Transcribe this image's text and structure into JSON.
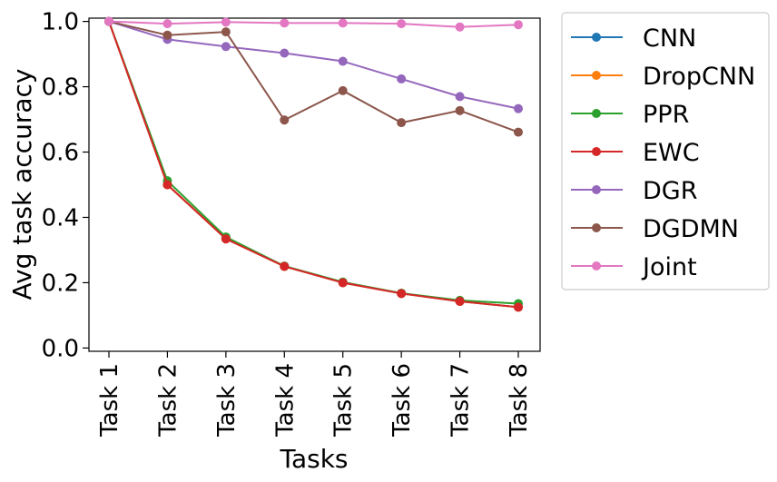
{
  "chart_data": {
    "type": "line",
    "xlabel": "Tasks",
    "ylabel": "Avg task accuracy",
    "categories": [
      "Task 1",
      "Task 2",
      "Task 3",
      "Task 4",
      "Task 5",
      "Task 6",
      "Task 7",
      "Task 8"
    ],
    "ylim": [
      0.0,
      1.0
    ],
    "yticks": [
      "0.0",
      "0.2",
      "0.4",
      "0.6",
      "0.8",
      "1.0"
    ],
    "legend_position": "outside-right",
    "grid": false,
    "series": [
      {
        "name": "CNN",
        "color": "#1f77b4",
        "values": [
          1.0,
          0.5,
          0.335,
          0.25,
          0.2,
          0.167,
          0.143,
          0.125
        ]
      },
      {
        "name": "DropCNN",
        "color": "#ff7f0e",
        "values": [
          1.0,
          0.5,
          0.335,
          0.25,
          0.2,
          0.167,
          0.143,
          0.125
        ]
      },
      {
        "name": "PPR",
        "color": "#2ca02c",
        "values": [
          1.0,
          0.512,
          0.34,
          0.251,
          0.202,
          0.168,
          0.146,
          0.136
        ]
      },
      {
        "name": "EWC",
        "color": "#d62728",
        "values": [
          1.0,
          0.5,
          0.334,
          0.25,
          0.2,
          0.167,
          0.143,
          0.125
        ]
      },
      {
        "name": "DGR",
        "color": "#9467bd",
        "values": [
          1.0,
          0.945,
          0.923,
          0.903,
          0.878,
          0.824,
          0.77,
          0.733
        ]
      },
      {
        "name": "DGDMN",
        "color": "#8c564b",
        "values": [
          1.0,
          0.958,
          0.968,
          0.698,
          0.788,
          0.69,
          0.727,
          0.661
        ]
      },
      {
        "name": "Joint",
        "color": "#e377c2",
        "values": [
          1.0,
          0.993,
          0.998,
          0.995,
          0.995,
          0.993,
          0.983,
          0.99
        ]
      }
    ]
  }
}
